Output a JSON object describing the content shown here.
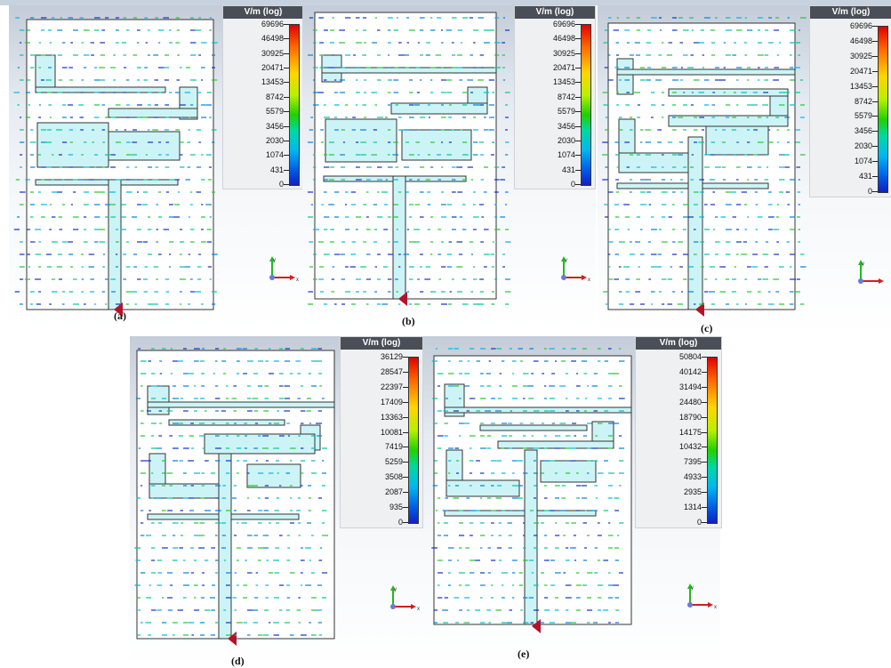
{
  "legend_unit": "V/m (log)",
  "panels": [
    {
      "caption": "(a)",
      "ticks": [
        "69696",
        "46498",
        "30925",
        "20471",
        "13453",
        "8742",
        "5579",
        "3456",
        "2030",
        "1074",
        "431",
        "0"
      ]
    },
    {
      "caption": "(b)",
      "ticks": [
        "69696",
        "46498",
        "30925",
        "20471",
        "13453",
        "8742",
        "5579",
        "3456",
        "2030",
        "1074",
        "431",
        "0"
      ]
    },
    {
      "caption": "(c)",
      "ticks": [
        "69696",
        "46498",
        "30925",
        "20471",
        "13453",
        "8742",
        "5579",
        "3456",
        "2030",
        "1074",
        "431",
        "0"
      ]
    },
    {
      "caption": "(d)",
      "ticks": [
        "36129",
        "28547",
        "22397",
        "17409",
        "13363",
        "10081",
        "7419",
        "5259",
        "3508",
        "2087",
        "935",
        "0"
      ]
    },
    {
      "caption": "(e)",
      "ticks": [
        "50804",
        "40142",
        "31494",
        "24480",
        "18790",
        "14175",
        "10432",
        "7395",
        "4933",
        "2935",
        "1314",
        "0"
      ]
    }
  ],
  "axis_labels": {
    "y": "y",
    "x": "x",
    "z": "z"
  },
  "colors": {
    "antenna_fill": "#ccf4f6",
    "outline": "#333333",
    "port": "#b3122a",
    "bg_top": "#c3ccd8"
  }
}
